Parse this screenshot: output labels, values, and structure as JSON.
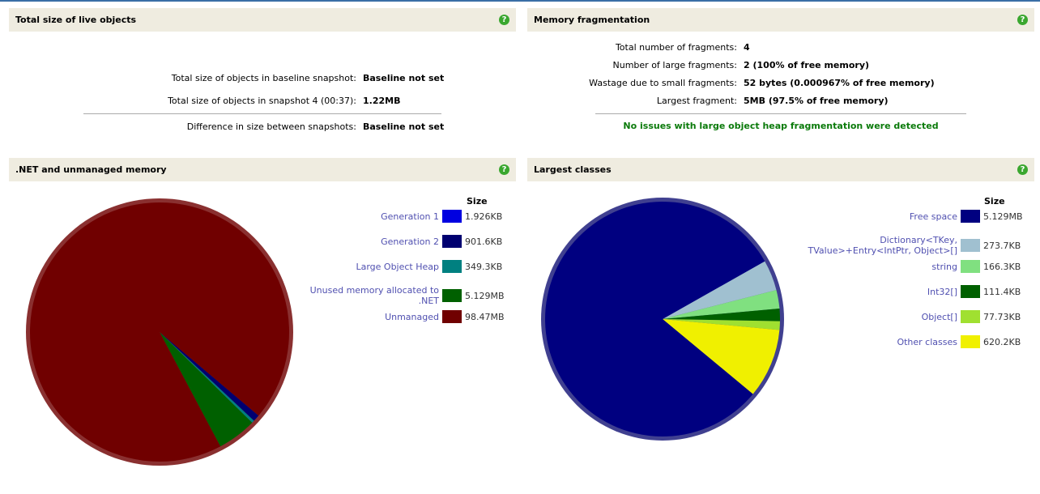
{
  "live": {
    "title": "Total size of live objects",
    "rows": [
      {
        "label": "Total size of objects in baseline snapshot:",
        "value": "Baseline not set"
      },
      {
        "label": "Total size of objects in snapshot 4 (00:37):",
        "value": "1.22MB"
      },
      {
        "label": "Difference in size between snapshots:",
        "value": "Baseline not set"
      }
    ]
  },
  "frag": {
    "title": "Memory fragmentation",
    "rows": [
      {
        "label": "Total number of fragments:",
        "value": "4"
      },
      {
        "label": "Number of large fragments:",
        "value": "2 (100% of free memory)"
      },
      {
        "label": "Wastage due to small fragments:",
        "value": "52 bytes (0.000967% of free memory)"
      },
      {
        "label": "Largest fragment:",
        "value": "5MB (97.5% of free memory)"
      }
    ],
    "status": "No issues with large object heap fragmentation were detected"
  },
  "chart_data": [
    {
      "type": "pie",
      "title": ".NET and unmanaged memory",
      "legend_header": "Size",
      "labels": [
        "Generation 1",
        "Generation 2",
        "Large Object Heap",
        "Unused memory allocated to .NET",
        "Unmanaged"
      ],
      "display": [
        "1.926KB",
        "901.6KB",
        "349.3KB",
        "5.129MB",
        "98.47MB"
      ],
      "values_kb": [
        1.926,
        901.6,
        349.3,
        5252,
        100833
      ],
      "colors": [
        "#0000e0",
        "#000070",
        "#008080",
        "#006000",
        "#700000"
      ]
    },
    {
      "type": "pie",
      "title": "Largest classes",
      "legend_header": "Size",
      "labels": [
        "Free space",
        "Dictionary<TKey, TValue>+Entry<IntPtr, Object>[]",
        "string",
        "Int32[]",
        "Object[]",
        "Other classes"
      ],
      "display": [
        "5.129MB",
        "273.7KB",
        "166.3KB",
        "111.4KB",
        "77.73KB",
        "620.2KB"
      ],
      "values_kb": [
        5252,
        273.7,
        166.3,
        111.4,
        77.73,
        620.2
      ],
      "colors": [
        "#000080",
        "#a0c0d0",
        "#80e080",
        "#006000",
        "#a0e030",
        "#f0f000"
      ]
    }
  ]
}
